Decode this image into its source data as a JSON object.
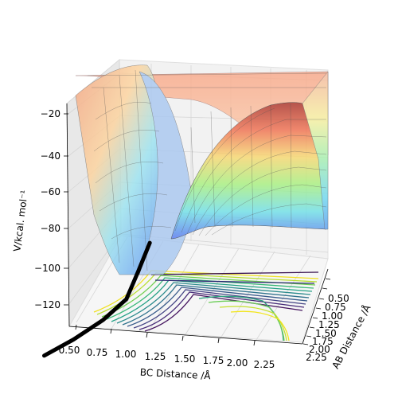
{
  "chart_data": {
    "type": "surface3d",
    "title": "",
    "xlabel": "BC Distance /Å",
    "ylabel": "AB Distance /Å",
    "zlabel": "V/kcal. mol⁻¹",
    "x_ticks": [
      "0.50",
      "0.75",
      "1.00",
      "1.25",
      "1.50",
      "1.75",
      "2.00",
      "2.25"
    ],
    "y_ticks": [
      "0.50",
      "0.75",
      "1.00",
      "1.25",
      "1.50",
      "1.75",
      "2.00",
      "2.25"
    ],
    "z_ticks": [
      "−20",
      "−40",
      "−60",
      "−80",
      "−100",
      "−120"
    ],
    "xlim": [
      0.5,
      2.4
    ],
    "ylim": [
      0.5,
      2.4
    ],
    "zlim": [
      -130,
      -15
    ],
    "surface_colormap": "jet",
    "contour_colormap": "viridis",
    "grid": true,
    "trajectory": [
      {
        "x": 0.3,
        "z": -170
      },
      {
        "x": 0.55,
        "z": -160
      },
      {
        "x": 0.8,
        "z": -148
      },
      {
        "x": 1.0,
        "z": -135
      },
      {
        "x": 1.1,
        "z": -118
      },
      {
        "x": 1.2,
        "z": -100
      }
    ]
  }
}
